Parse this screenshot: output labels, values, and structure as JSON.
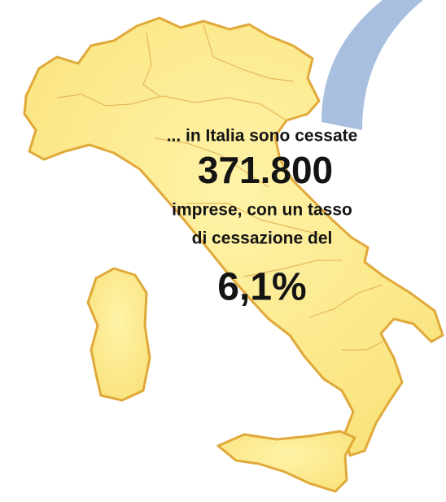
{
  "intro": "... in Italia sono cessate",
  "count": "371.800",
  "line_1": "imprese, con un tasso",
  "line_2": "di cessazione del",
  "rate": "6,1%"
}
